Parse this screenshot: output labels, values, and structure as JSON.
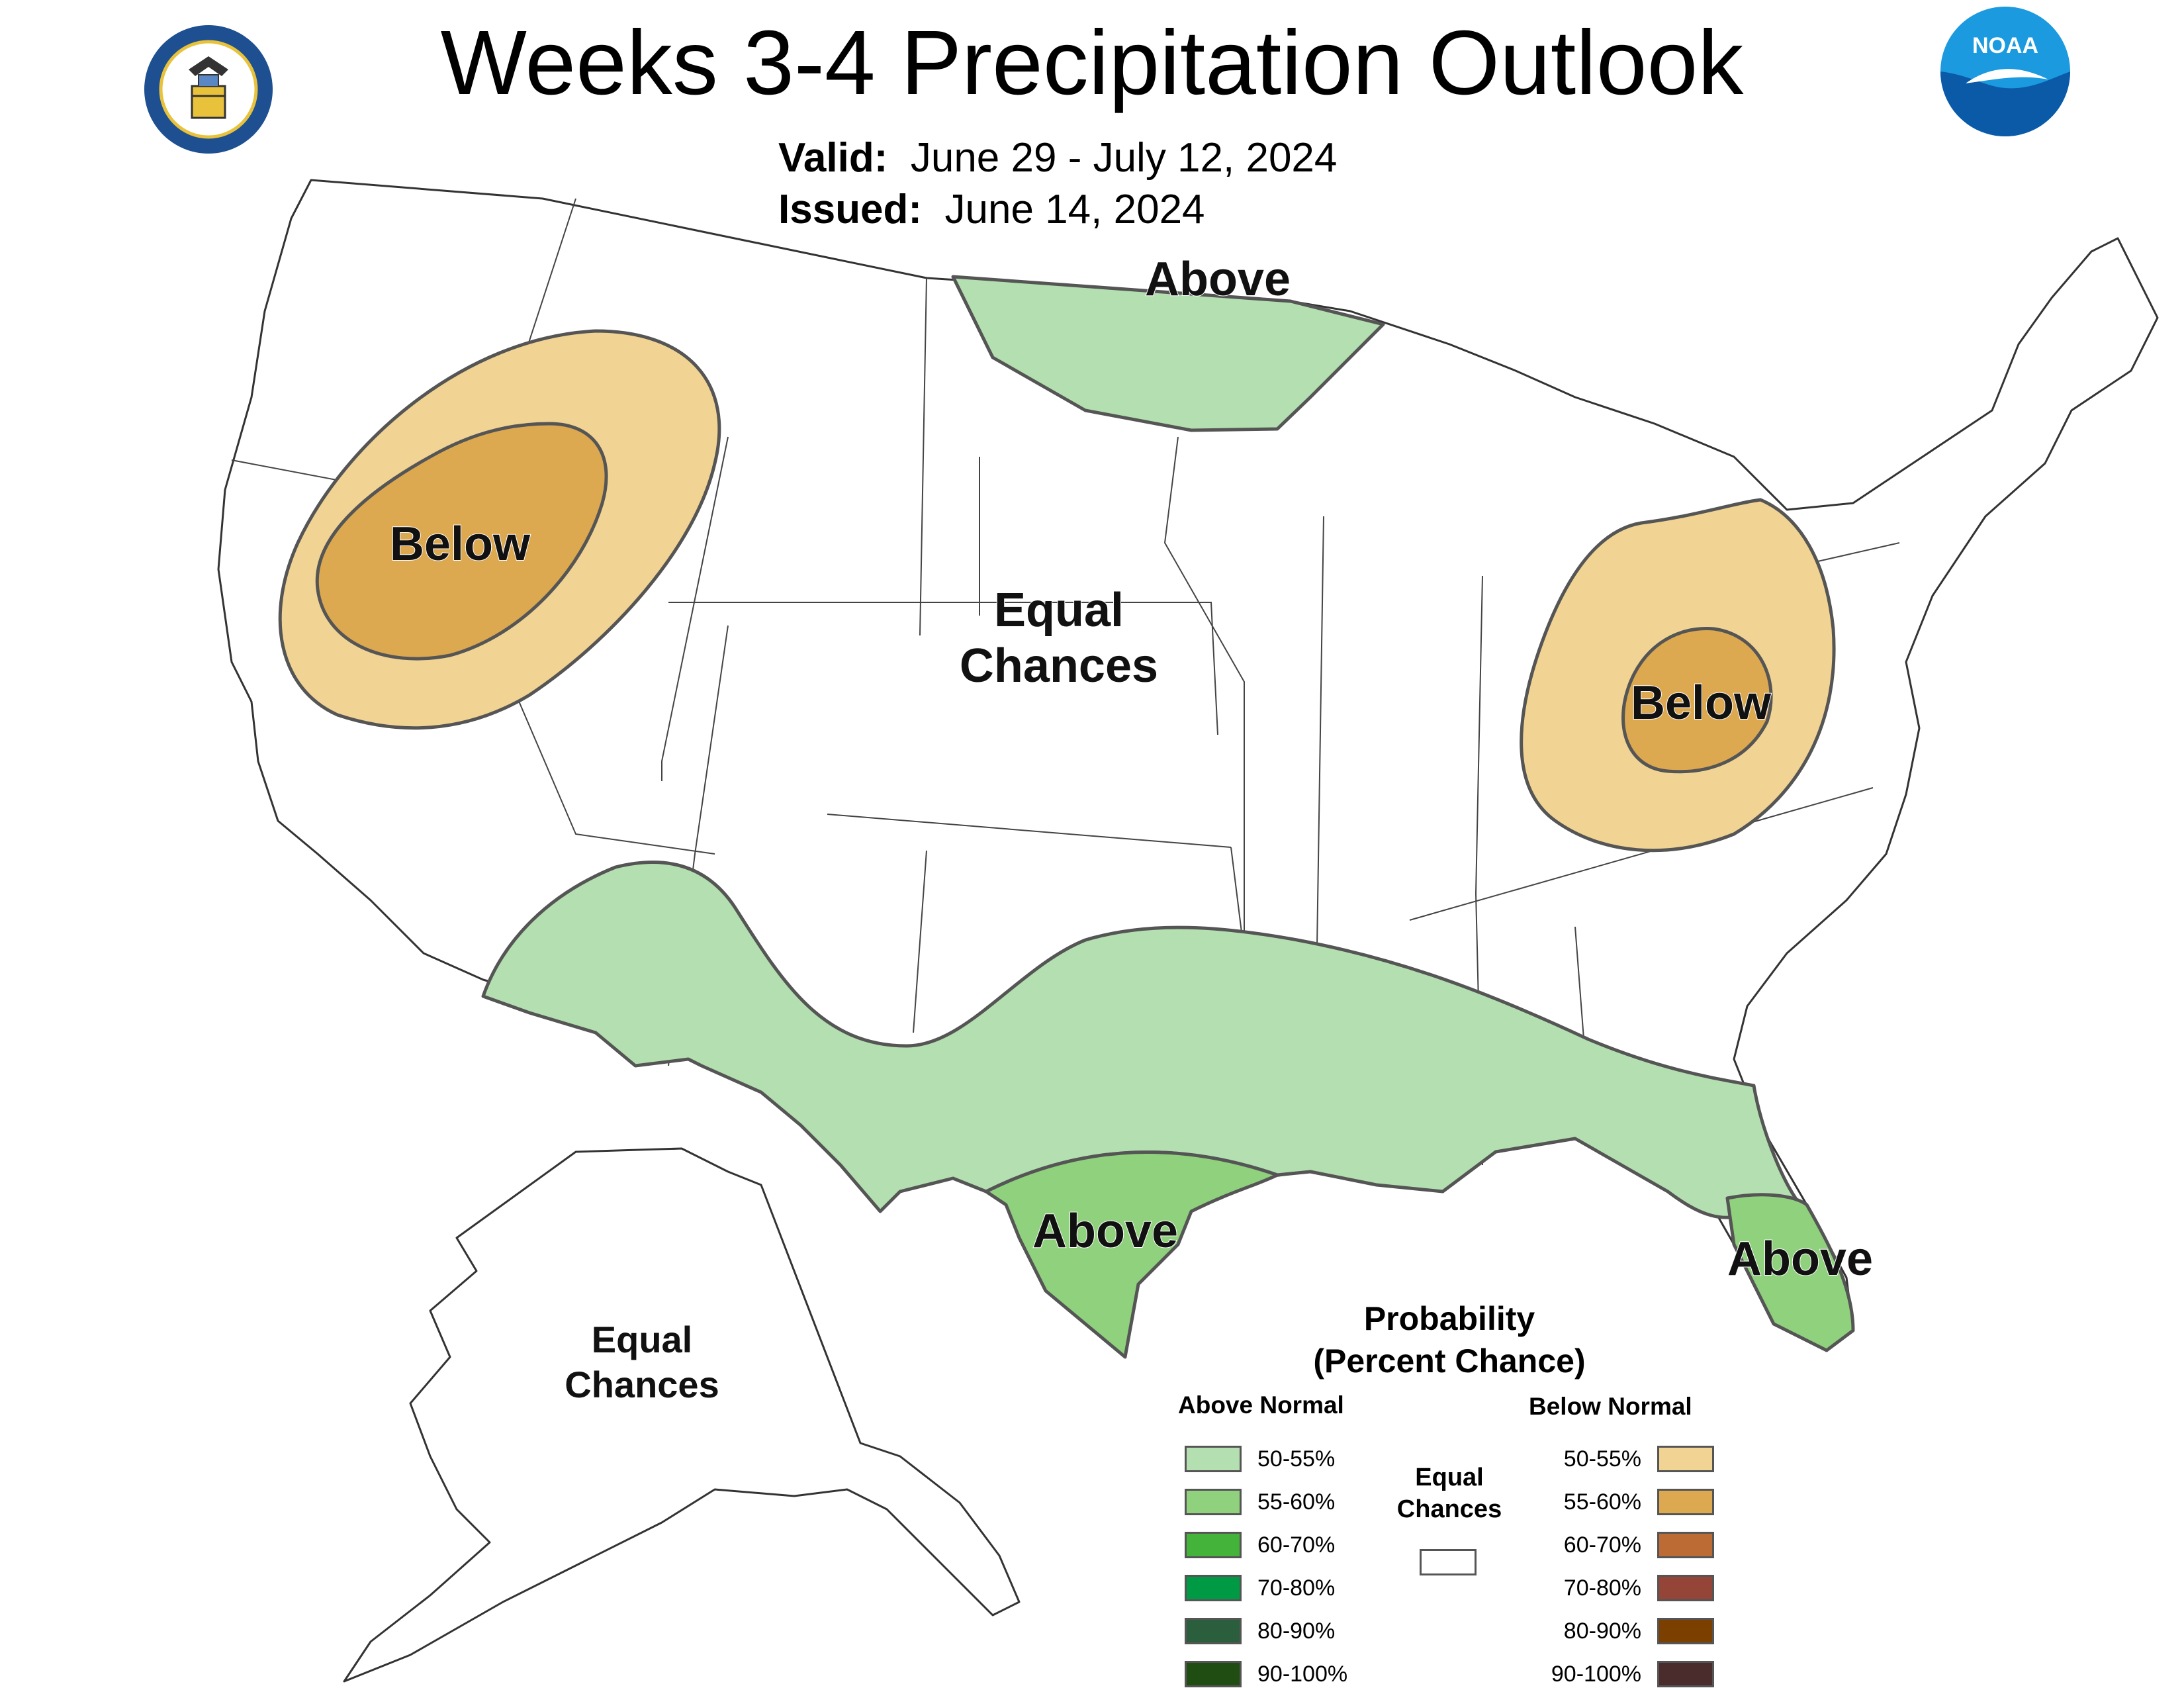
{
  "title": "Weeks 3-4 Precipitation Outlook",
  "valid": {
    "label": "Valid:",
    "value": "June 29 - July 12, 2024"
  },
  "issued": {
    "label": "Issued:",
    "value": "June 14, 2024"
  },
  "logos": {
    "left": "department-of-commerce-seal",
    "right": "noaa-logo",
    "right_text": "NOAA"
  },
  "map_labels": {
    "above_north": "Above",
    "below_west": "Below",
    "equal_center_line1": "Equal",
    "equal_center_line2": "Chances",
    "below_east": "Below",
    "above_texas": "Above",
    "above_florida": "Above",
    "alaska_line1": "Equal",
    "alaska_line2": "Chances"
  },
  "legend": {
    "title_line1": "Probability",
    "title_line2": "(Percent Chance)",
    "above_header": "Above Normal",
    "below_header": "Below Normal",
    "equal_line1": "Equal",
    "equal_line2": "Chances",
    "above": [
      {
        "label": "50-55%",
        "color": "#b4dfb0"
      },
      {
        "label": "55-60%",
        "color": "#8fd17d"
      },
      {
        "label": "60-70%",
        "color": "#44b33a"
      },
      {
        "label": "70-80%",
        "color": "#009a44"
      },
      {
        "label": "80-90%",
        "color": "#2b5e3c"
      },
      {
        "label": "90-100%",
        "color": "#1f4d12"
      }
    ],
    "below": [
      {
        "label": "50-55%",
        "color": "#f1d493"
      },
      {
        "label": "55-60%",
        "color": "#dca850"
      },
      {
        "label": "60-70%",
        "color": "#bd6b34"
      },
      {
        "label": "70-80%",
        "color": "#944537"
      },
      {
        "label": "80-90%",
        "color": "#7b3f00"
      },
      {
        "label": "90-100%",
        "color": "#4b2c2c"
      }
    ]
  },
  "colors": {
    "above_50_55": "#b4dfb0",
    "above_55_60": "#8fd17d",
    "below_50_55": "#f1d493",
    "below_55_60": "#dca850",
    "outline": "#555555"
  }
}
